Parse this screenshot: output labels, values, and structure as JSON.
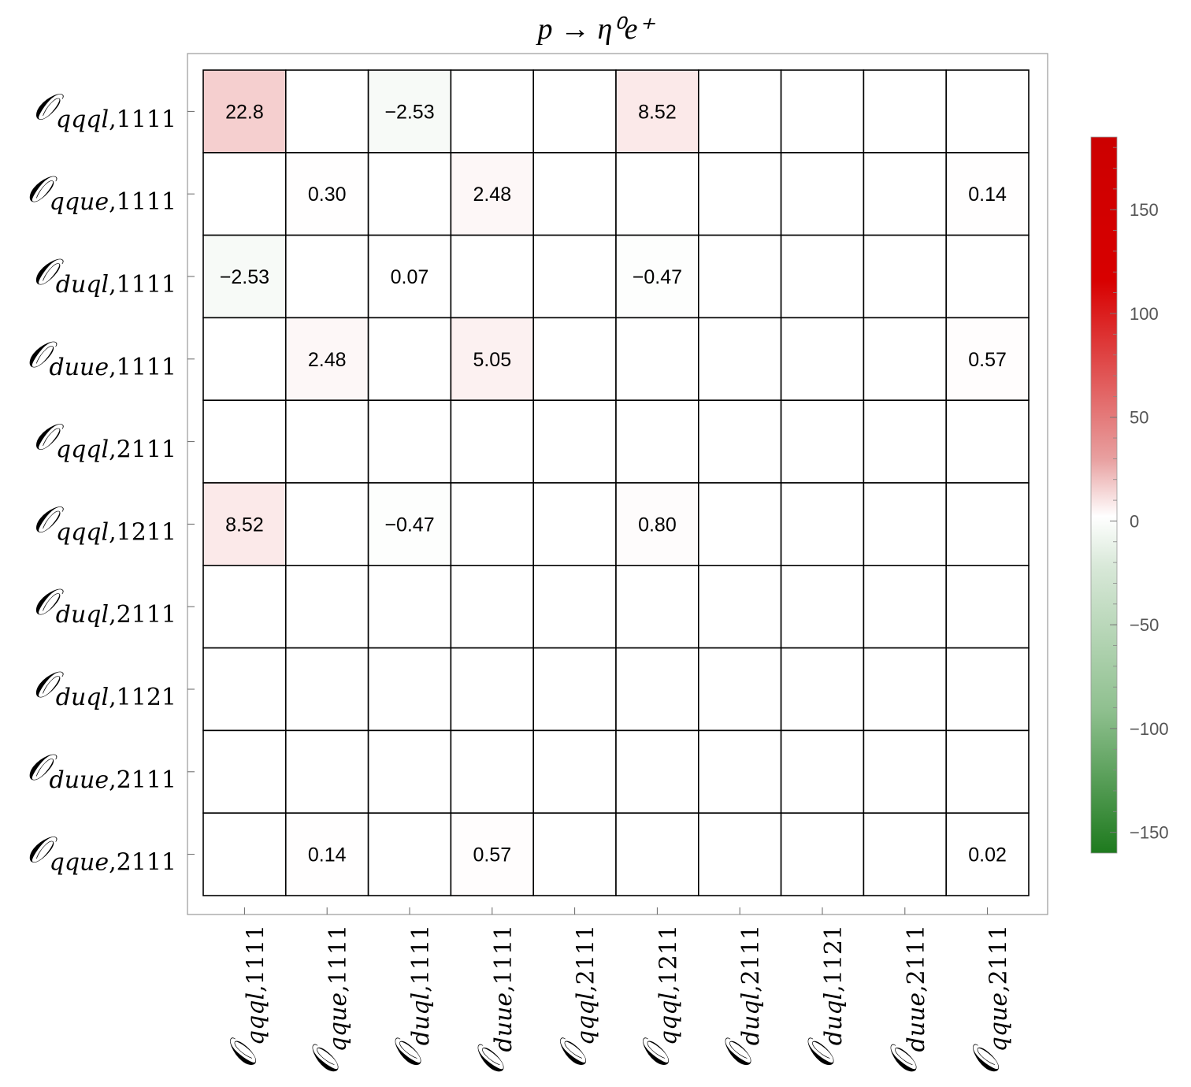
{
  "chart_data": {
    "type": "heatmap",
    "title": "p → η⁰e⁺",
    "row_labels": [
      {
        "sub": "qqql,1111"
      },
      {
        "sub": "qque,1111"
      },
      {
        "sub": "duql,1111"
      },
      {
        "sub": "duue,1111"
      },
      {
        "sub": "qqql,2111"
      },
      {
        "sub": "qqql,1211"
      },
      {
        "sub": "duql,2111"
      },
      {
        "sub": "duql,1121"
      },
      {
        "sub": "duue,2111"
      },
      {
        "sub": "qque,2111"
      }
    ],
    "col_labels": [
      {
        "sub": "qqql,1111"
      },
      {
        "sub": "qque,1111"
      },
      {
        "sub": "duql,1111"
      },
      {
        "sub": "duue,1111"
      },
      {
        "sub": "qqql,2111"
      },
      {
        "sub": "qqql,1211"
      },
      {
        "sub": "duql,2111"
      },
      {
        "sub": "duql,1121"
      },
      {
        "sub": "duue,2111"
      },
      {
        "sub": "qque,2111"
      }
    ],
    "label_symbol": "O",
    "cells": [
      [
        22.8,
        null,
        -2.53,
        null,
        null,
        8.52,
        null,
        null,
        null,
        null
      ],
      [
        null,
        0.3,
        null,
        2.48,
        null,
        null,
        null,
        null,
        null,
        0.14
      ],
      [
        -2.53,
        null,
        0.07,
        null,
        null,
        -0.47,
        null,
        null,
        null,
        null
      ],
      [
        null,
        2.48,
        null,
        5.05,
        null,
        null,
        null,
        null,
        null,
        0.57
      ],
      [
        null,
        null,
        null,
        null,
        null,
        null,
        null,
        null,
        null,
        null
      ],
      [
        8.52,
        null,
        -0.47,
        null,
        null,
        0.8,
        null,
        null,
        null,
        null
      ],
      [
        null,
        null,
        null,
        null,
        null,
        null,
        null,
        null,
        null,
        null
      ],
      [
        null,
        null,
        null,
        null,
        null,
        null,
        null,
        null,
        null,
        null
      ],
      [
        null,
        null,
        null,
        null,
        null,
        null,
        null,
        null,
        null,
        null
      ],
      [
        null,
        0.14,
        null,
        0.57,
        null,
        null,
        null,
        null,
        null,
        0.02
      ]
    ],
    "cell_labels": [
      [
        "22.8",
        "",
        "−2.53",
        "",
        "",
        "8.52",
        "",
        "",
        "",
        ""
      ],
      [
        "",
        "0.30",
        "",
        "2.48",
        "",
        "",
        "",
        "",
        "",
        "0.14"
      ],
      [
        "−2.53",
        "",
        "0.07",
        "",
        "",
        "−0.47",
        "",
        "",
        "",
        ""
      ],
      [
        "",
        "2.48",
        "",
        "5.05",
        "",
        "",
        "",
        "",
        "",
        "0.57"
      ],
      [
        "",
        "",
        "",
        "",
        "",
        "",
        "",
        "",
        "",
        ""
      ],
      [
        "8.52",
        "",
        "−0.47",
        "",
        "",
        "0.80",
        "",
        "",
        "",
        ""
      ],
      [
        "",
        "",
        "",
        "",
        "",
        "",
        "",
        "",
        "",
        ""
      ],
      [
        "",
        "",
        "",
        "",
        "",
        "",
        "",
        "",
        "",
        ""
      ],
      [
        "",
        "",
        "",
        "",
        "",
        "",
        "",
        "",
        "",
        ""
      ],
      [
        "",
        "0.14",
        "",
        "0.57",
        "",
        "",
        "",
        "",
        "",
        "0.02"
      ]
    ],
    "colorbar": {
      "range": [
        -160,
        185
      ],
      "ticks": [
        150,
        100,
        50,
        0,
        -50,
        -100,
        -150
      ],
      "tick_labels": [
        "150",
        "100",
        "50",
        "0",
        "−50",
        "−100",
        "−150"
      ],
      "color_max": "#cc0000",
      "color_zero": "#ffffff",
      "color_min": "#1e7a1e"
    }
  }
}
